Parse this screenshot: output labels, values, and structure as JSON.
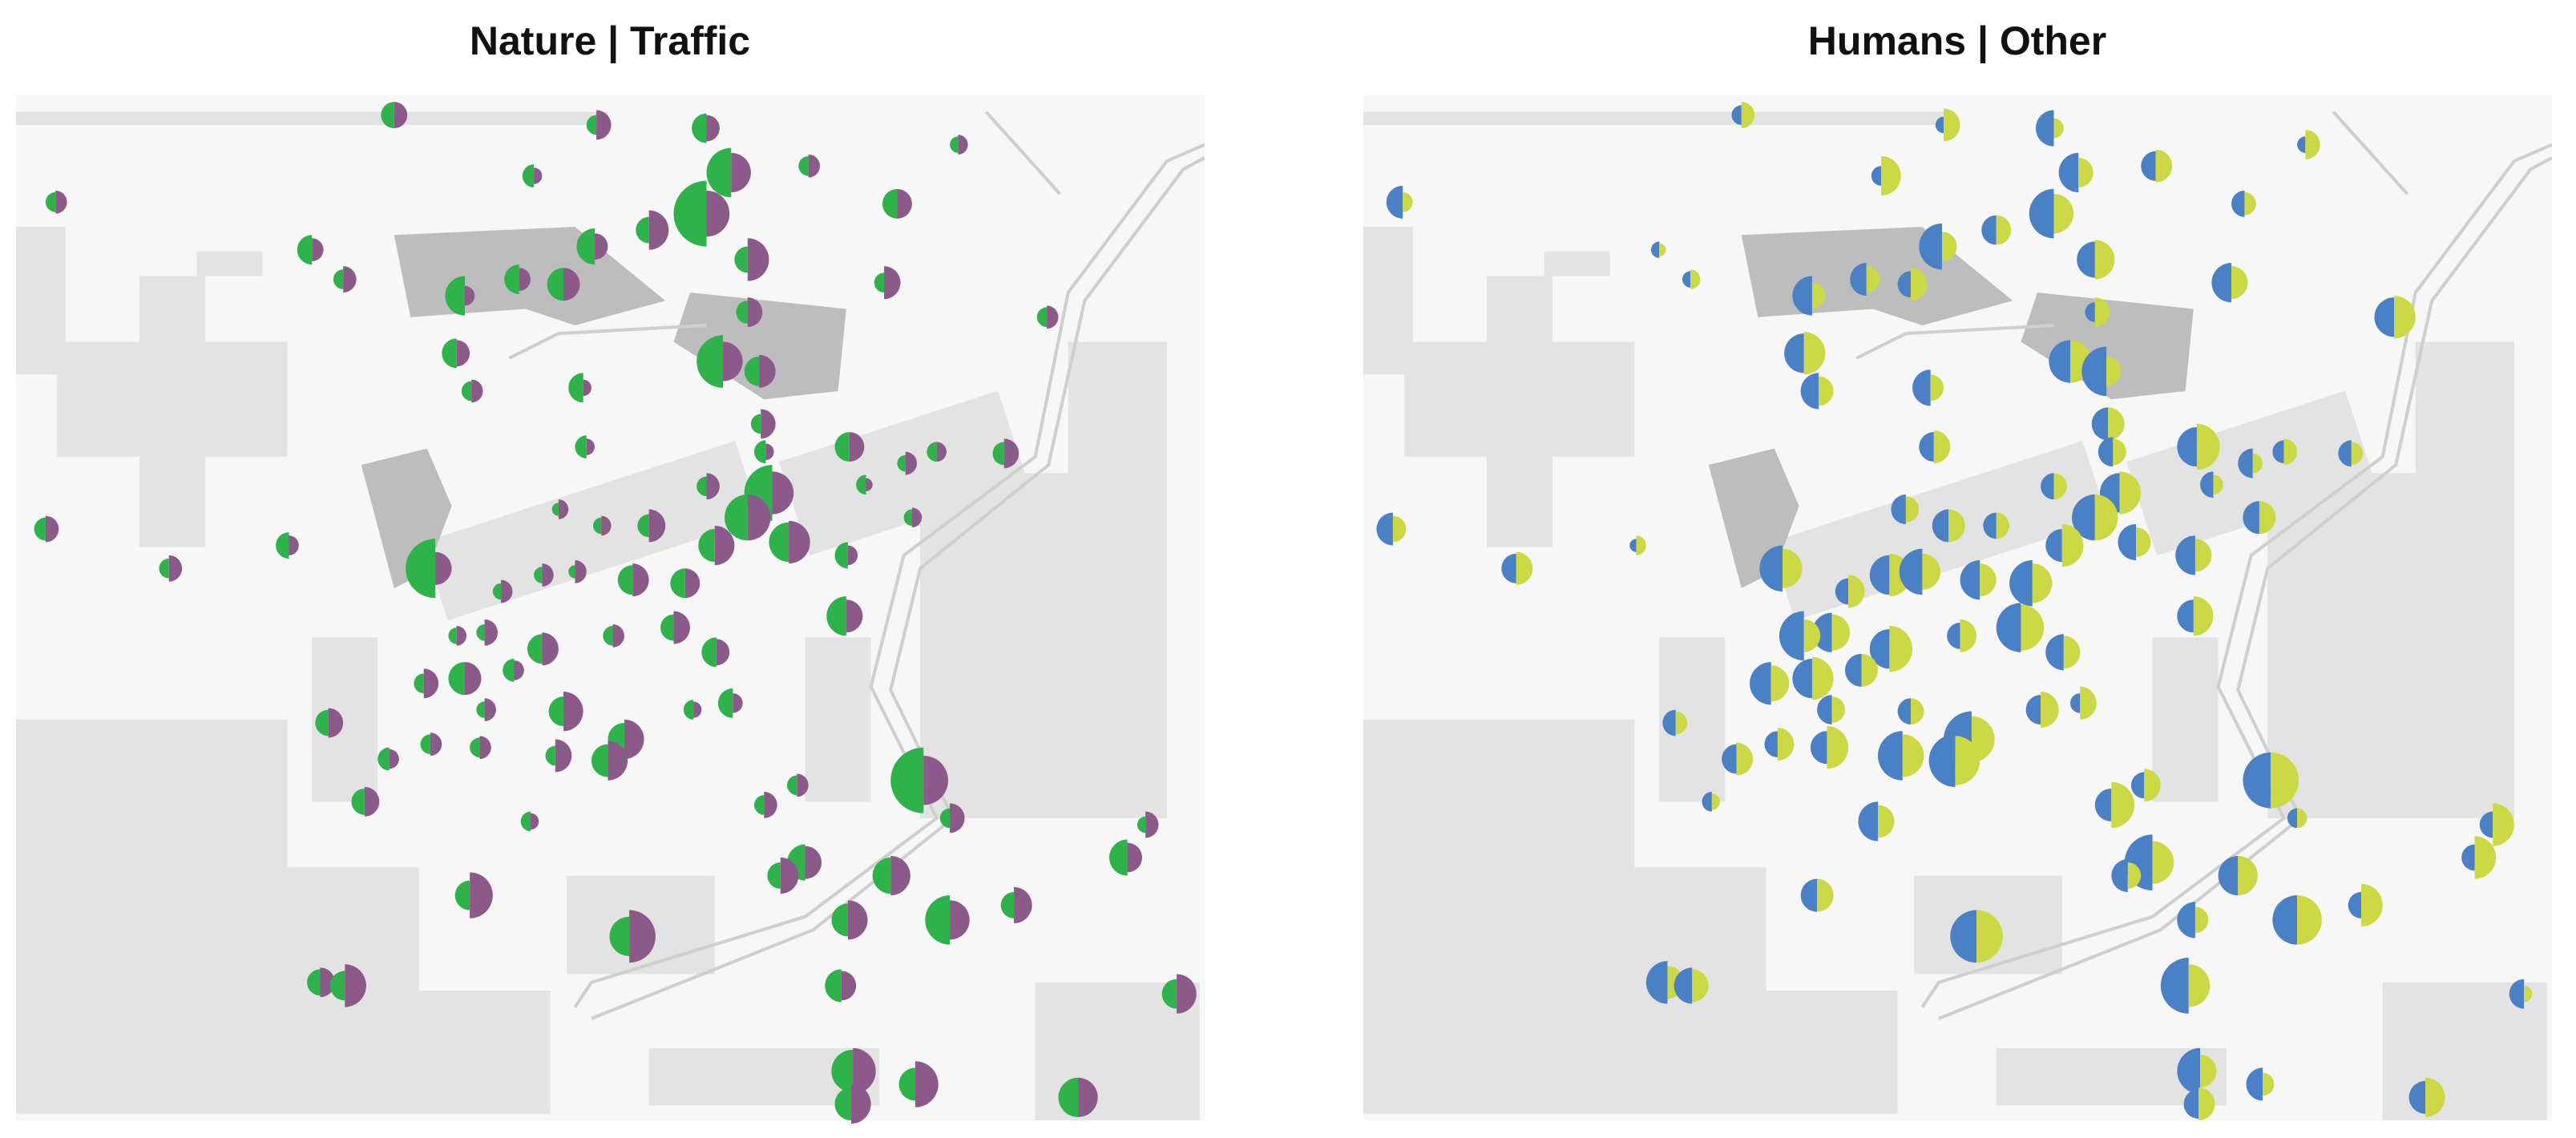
{
  "chart_data": [
    {
      "type": "split-glyph-map",
      "title": "Nature | Traffic",
      "xlim": [
        0,
        723
      ],
      "ylim": [
        0,
        624
      ],
      "x": [
        230,
        353,
        420,
        573,
        482,
        315,
        435,
        24,
        420,
        536,
        385,
        352,
        445,
        180,
        199,
        273,
        306,
        333,
        528,
        445,
        627,
        268,
        430,
        452,
        277,
        345,
        453,
        507,
        456,
        560,
        601,
        347,
        460,
        445,
        470,
        517,
        541,
        420,
        506,
        545,
        18,
        166,
        93,
        255,
        425,
        385,
        356,
        330,
        375,
        407,
        320,
        295,
        340,
        505,
        285,
        320,
        268,
        400,
        363,
        426,
        248,
        273,
        303,
        333,
        370,
        285,
        436,
        412,
        190,
        252,
        282,
        328,
        360,
        227,
        552,
        475,
        455,
        212,
        313,
        568,
        687,
        676,
        480,
        532,
        465,
        276,
        373,
        506,
        568,
        607,
        185,
        200,
        502,
        706,
        509,
        547,
        646,
        508
      ],
      "y": [
        12,
        18,
        20,
        30,
        43,
        49,
        47,
        65,
        72,
        66,
        82,
        92,
        100,
        94,
        112,
        122,
        112,
        115,
        114,
        132,
        135,
        157,
        162,
        168,
        180,
        178,
        200,
        214,
        217,
        217,
        218,
        214,
        242,
        257,
        272,
        237,
        224,
        238,
        280,
        257,
        264,
        274,
        288,
        288,
        274,
        262,
        262,
        252,
        295,
        297,
        292,
        302,
        290,
        317,
        327,
        337,
        329,
        324,
        329,
        339,
        358,
        355,
        350,
        375,
        392,
        374,
        370,
        374,
        382,
        395,
        397,
        402,
        405,
        404,
        417,
        420,
        432,
        430,
        442,
        440,
        444,
        464,
        467,
        475,
        475,
        487,
        512,
        502,
        502,
        493,
        540,
        542,
        542,
        547,
        594,
        602,
        610,
        614
      ],
      "series": [
        {
          "color": "#2db34a",
          "values": [
            8,
            6,
            9,
            5,
            6,
            7,
            15,
            6,
            20,
            9,
            8,
            11,
            8,
            9,
            6,
            12,
            9,
            10,
            6,
            7,
            6,
            9,
            16,
            9,
            6,
            9,
            6,
            9,
            7,
            6,
            7,
            7,
            17,
            14,
            12,
            6,
            5,
            6,
            8,
            5,
            7,
            8,
            6,
            18,
            10,
            7,
            5,
            4,
            9,
            9,
            5,
            5,
            4,
            12,
            5,
            9,
            5,
            8,
            6,
            9,
            6,
            10,
            7,
            9,
            10,
            5,
            9,
            6,
            8,
            6,
            6,
            6,
            10,
            7,
            20,
            6,
            6,
            8,
            6,
            6,
            5,
            11,
            11,
            11,
            8,
            9,
            12,
            10,
            15,
            8,
            8,
            9,
            10,
            9,
            13,
            10,
            12,
            10
          ]
        },
        {
          "color": "#8c5a8a",
          "values": [
            8,
            9,
            8,
            6,
            7,
            5,
            12,
            7,
            14,
            9,
            12,
            8,
            13,
            7,
            8,
            6,
            7,
            10,
            10,
            9,
            7,
            8,
            12,
            10,
            7,
            5,
            9,
            9,
            5,
            6,
            9,
            5,
            13,
            14,
            13,
            4,
            7,
            8,
            6,
            6,
            8,
            6,
            8,
            10,
            12,
            10,
            6,
            6,
            10,
            9,
            7,
            7,
            7,
            10,
            8,
            10,
            6,
            10,
            7,
            8,
            9,
            10,
            6,
            12,
            12,
            7,
            6,
            5,
            9,
            7,
            7,
            10,
            12,
            6,
            15,
            7,
            8,
            9,
            5,
            9,
            8,
            9,
            10,
            12,
            11,
            14,
            16,
            12,
            12,
            11,
            9,
            13,
            9,
            12,
            14,
            14,
            12,
            12
          ]
        }
      ]
    },
    {
      "type": "split-glyph-map",
      "title": "Humans | Other",
      "xlim": [
        0,
        723
      ],
      "ylim": [
        0,
        624
      ],
      "x": [
        230,
        353,
        420,
        573,
        482,
        315,
        435,
        24,
        420,
        536,
        385,
        352,
        445,
        180,
        199,
        273,
        306,
        333,
        528,
        445,
        627,
        268,
        430,
        452,
        277,
        345,
        453,
        507,
        456,
        560,
        601,
        347,
        460,
        445,
        470,
        517,
        541,
        420,
        506,
        545,
        18,
        166,
        93,
        255,
        425,
        385,
        356,
        330,
        375,
        407,
        320,
        295,
        340,
        505,
        285,
        320,
        268,
        400,
        363,
        426,
        248,
        273,
        303,
        333,
        370,
        285,
        436,
        412,
        190,
        252,
        282,
        328,
        360,
        227,
        552,
        475,
        455,
        212,
        313,
        568,
        687,
        676,
        480,
        532,
        465,
        276,
        373,
        506,
        568,
        607,
        185,
        200,
        502,
        706,
        509,
        547,
        646,
        508
      ],
      "y": [
        12,
        18,
        20,
        30,
        43,
        49,
        47,
        65,
        72,
        66,
        82,
        92,
        100,
        94,
        112,
        122,
        112,
        115,
        114,
        132,
        135,
        157,
        162,
        168,
        180,
        178,
        200,
        214,
        217,
        217,
        218,
        214,
        242,
        257,
        272,
        237,
        224,
        238,
        280,
        257,
        264,
        274,
        288,
        288,
        274,
        262,
        262,
        252,
        295,
        297,
        292,
        302,
        290,
        317,
        327,
        337,
        329,
        324,
        329,
        339,
        358,
        355,
        350,
        375,
        392,
        374,
        370,
        374,
        382,
        395,
        397,
        402,
        405,
        404,
        417,
        420,
        432,
        430,
        442,
        440,
        444,
        464,
        467,
        475,
        475,
        487,
        512,
        502,
        502,
        493,
        540,
        542,
        542,
        547,
        594,
        602,
        610,
        614
      ],
      "series": [
        {
          "color": "#4a80c6",
          "values": [
            6,
            5,
            11,
            5,
            9,
            6,
            12,
            10,
            15,
            8,
            9,
            14,
            11,
            5,
            5,
            12,
            10,
            8,
            12,
            6,
            12,
            12,
            13,
            15,
            11,
            11,
            10,
            12,
            9,
            7,
            8,
            9,
            12,
            14,
            11,
            8,
            9,
            8,
            12,
            10,
            10,
            4,
            9,
            14,
            10,
            8,
            10,
            9,
            12,
            14,
            12,
            8,
            14,
            10,
            12,
            12,
            15,
            15,
            8,
            11,
            13,
            12,
            10,
            8,
            17,
            9,
            6,
            9,
            8,
            8,
            10,
            15,
            16,
            9,
            17,
            8,
            10,
            6,
            12,
            6,
            8,
            8,
            17,
            12,
            10,
            10,
            16,
            11,
            15,
            8,
            13,
            11,
            17,
            9,
            14,
            10,
            10,
            9
          ]
        },
        {
          "color": "#cdd944",
          "values": [
            8,
            10,
            6,
            9,
            10,
            12,
            9,
            6,
            12,
            7,
            9,
            9,
            12,
            4,
            6,
            8,
            8,
            10,
            10,
            9,
            13,
            13,
            13,
            9,
            9,
            8,
            10,
            14,
            8,
            8,
            7,
            10,
            13,
            14,
            9,
            6,
            6,
            8,
            10,
            10,
            8,
            6,
            10,
            12,
            13,
            8,
            10,
            8,
            10,
            12,
            13,
            10,
            11,
            12,
            11,
            14,
            10,
            14,
            10,
            10,
            11,
            13,
            10,
            8,
            14,
            8,
            10,
            11,
            7,
            10,
            13,
            13,
            15,
            10,
            17,
            10,
            14,
            5,
            10,
            6,
            13,
            13,
            13,
            12,
            8,
            10,
            16,
            8,
            15,
            13,
            10,
            10,
            13,
            5,
            10,
            7,
            12,
            10
          ]
        }
      ]
    }
  ]
}
